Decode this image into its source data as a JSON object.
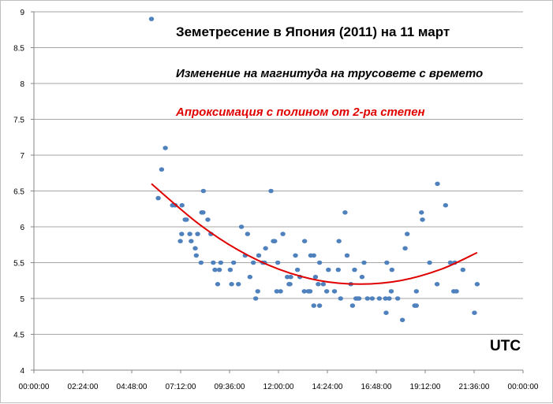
{
  "chart_data": {
    "type": "scatter",
    "title": "Земетресение в Япония (2011) на 11 март",
    "subtitle": "Изменение на магнитуда на трусовете с времето",
    "trendline_label": "Апроксимация с полином от 2-ра степен",
    "xlabel": "UTC",
    "ylabel": "",
    "xlim": [
      "00:00:00",
      "24:00:00"
    ],
    "ylim": [
      4,
      9
    ],
    "x_ticks": [
      "00:00:00",
      "02:24:00",
      "04:48:00",
      "07:12:00",
      "09:36:00",
      "12:00:00",
      "14:24:00",
      "16:48:00",
      "19:12:00",
      "21:36:00",
      "00:00:00"
    ],
    "y_ticks": [
      "4",
      "4.5",
      "5",
      "5.5",
      "6",
      "6.5",
      "7",
      "7.5",
      "8",
      "8.5",
      "9"
    ],
    "grid": "horizontal",
    "colors": {
      "points": "#4f81bd",
      "trendline": "#e00000",
      "trendline_label": "#e00000",
      "grid": "#a6a6a6"
    },
    "points": [
      [
        "05:46",
        8.9
      ],
      [
        "06:06",
        6.4
      ],
      [
        "06:16",
        6.8
      ],
      [
        "06:27",
        7.1
      ],
      [
        "06:48",
        6.3
      ],
      [
        "06:56",
        6.3
      ],
      [
        "07:16",
        6.3
      ],
      [
        "08:19",
        6.5
      ],
      [
        "08:14",
        6.2
      ],
      [
        "08:18",
        6.2
      ],
      [
        "07:25",
        6.1
      ],
      [
        "07:29",
        6.1
      ],
      [
        "08:32",
        6.1
      ],
      [
        "07:15",
        5.9
      ],
      [
        "07:39",
        5.9
      ],
      [
        "08:02",
        5.9
      ],
      [
        "08:41",
        5.9
      ],
      [
        "07:11",
        5.8
      ],
      [
        "07:43",
        5.8
      ],
      [
        "07:55",
        5.7
      ],
      [
        "07:58",
        5.6
      ],
      [
        "08:12",
        5.5
      ],
      [
        "08:48",
        5.5
      ],
      [
        "09:10",
        5.5
      ],
      [
        "08:53",
        5.4
      ],
      [
        "09:06",
        5.4
      ],
      [
        "09:01",
        5.2
      ],
      [
        "09:38",
        5.4
      ],
      [
        "09:48",
        5.5
      ],
      [
        "09:42",
        5.2
      ],
      [
        "10:02",
        5.2
      ],
      [
        "10:11",
        6.0
      ],
      [
        "10:29",
        5.9
      ],
      [
        "10:22",
        5.6
      ],
      [
        "10:36",
        5.3
      ],
      [
        "10:46",
        5.5
      ],
      [
        "11:02",
        5.6
      ],
      [
        "10:53",
        5.0
      ],
      [
        "10:59",
        5.1
      ],
      [
        "11:14",
        5.5
      ],
      [
        "11:19",
        5.5
      ],
      [
        "11:22",
        5.7
      ],
      [
        "11:38",
        6.5
      ],
      [
        "11:45",
        5.8
      ],
      [
        "11:49",
        5.8
      ],
      [
        "11:58",
        5.5
      ],
      [
        "11:55",
        5.1
      ],
      [
        "12:06",
        5.1
      ],
      [
        "12:13",
        5.9
      ],
      [
        "12:26",
        5.3
      ],
      [
        "12:36",
        5.3
      ],
      [
        "12:31",
        5.2
      ],
      [
        "12:34",
        5.2
      ],
      [
        "12:50",
        5.6
      ],
      [
        "12:56",
        5.4
      ],
      [
        "13:03",
        5.3
      ],
      [
        "13:17",
        5.8
      ],
      [
        "13:16",
        5.1
      ],
      [
        "13:33",
        5.1
      ],
      [
        "13:35",
        5.6
      ],
      [
        "13:44",
        5.6
      ],
      [
        "13:44",
        4.9
      ],
      [
        "13:49",
        5.3
      ],
      [
        "13:28",
        5.1
      ],
      [
        "14:01",
        5.5
      ],
      [
        "13:57",
        5.2
      ],
      [
        "14:12",
        5.2
      ],
      [
        "14:01",
        4.9
      ],
      [
        "14:22",
        5.1
      ],
      [
        "14:27",
        5.4
      ],
      [
        "14:45",
        5.1
      ],
      [
        "14:56",
        5.4
      ],
      [
        "14:58",
        5.8
      ],
      [
        "15:03",
        5.0
      ],
      [
        "15:16",
        6.2
      ],
      [
        "15:22",
        5.6
      ],
      [
        "15:33",
        5.2
      ],
      [
        "15:38",
        4.9
      ],
      [
        "15:44",
        5.4
      ],
      [
        "15:48",
        5.0
      ],
      [
        "15:52",
        5.0
      ],
      [
        "15:57",
        5.0
      ],
      [
        "16:06",
        5.3
      ],
      [
        "16:12",
        5.5
      ],
      [
        "16:22",
        5.0
      ],
      [
        "16:36",
        5.0
      ],
      [
        "16:57",
        5.0
      ],
      [
        "17:15",
        5.0
      ],
      [
        "17:26",
        5.0
      ],
      [
        "17:19",
        5.5
      ],
      [
        "17:17",
        4.8
      ],
      [
        "17:34",
        5.4
      ],
      [
        "17:32",
        5.1
      ],
      [
        "17:51",
        5.0
      ],
      [
        "18:05",
        4.7
      ],
      [
        "18:13",
        5.7
      ],
      [
        "18:19",
        5.9
      ],
      [
        "18:41",
        4.9
      ],
      [
        "18:46",
        4.9
      ],
      [
        "18:46",
        5.1
      ],
      [
        "19:01",
        6.2
      ],
      [
        "19:04",
        6.1
      ],
      [
        "19:25",
        5.5
      ],
      [
        "19:48",
        6.6
      ],
      [
        "19:47",
        5.2
      ],
      [
        "20:12",
        6.3
      ],
      [
        "20:26",
        5.5
      ],
      [
        "20:39",
        5.5
      ],
      [
        "20:36",
        5.1
      ],
      [
        "20:44",
        5.1
      ],
      [
        "21:03",
        5.4
      ],
      [
        "21:37",
        4.8
      ],
      [
        "21:45",
        5.2
      ]
    ],
    "trendline": {
      "type": "polynomial",
      "order": 2,
      "points": [
        [
          "05:46",
          6.6
        ],
        [
          "08:00",
          6.06
        ],
        [
          "10:00",
          5.68
        ],
        [
          "12:00",
          5.41
        ],
        [
          "14:00",
          5.25
        ],
        [
          "16:00",
          5.2
        ],
        [
          "18:00",
          5.25
        ],
        [
          "20:00",
          5.41
        ],
        [
          "21:45",
          5.64
        ]
      ]
    }
  }
}
